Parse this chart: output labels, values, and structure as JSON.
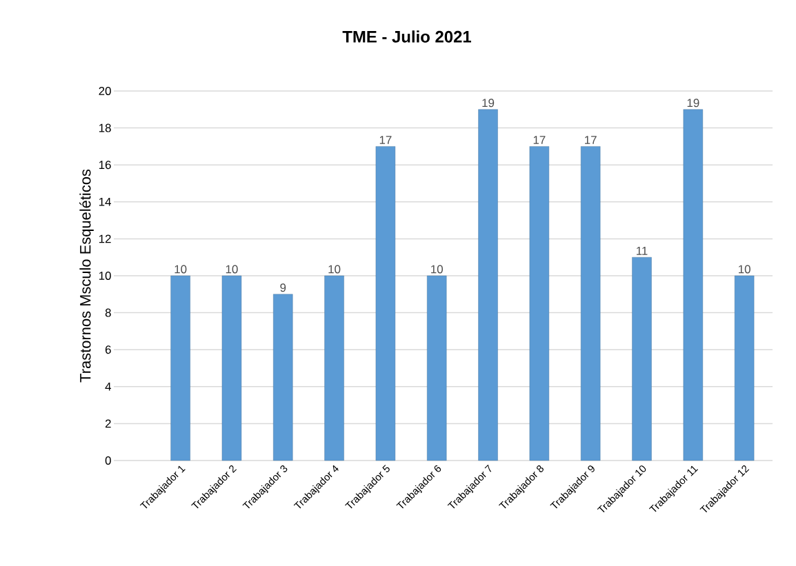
{
  "chart_data": {
    "type": "bar",
    "title": "TME - Julio 2021",
    "ylabel": "Trastornos Msculo Esqueléticos",
    "categories": [
      "Trabajador 1",
      "Trabajador 2",
      "Trabajador 3",
      "Trabajador 4",
      "Trabajador 5",
      "Trabajador 6",
      "Trabajador 7",
      "Trabajador 8",
      "Trabajador 9",
      "Trabajador 10",
      "Trabajador 11",
      "Trabajador 12"
    ],
    "values": [
      10,
      10,
      9,
      10,
      17,
      10,
      19,
      17,
      17,
      11,
      19,
      10
    ],
    "color": "#5b9bd5",
    "ylim": [
      0,
      20
    ],
    "yticks": [
      0,
      2,
      4,
      6,
      8,
      10,
      12,
      14,
      16,
      18,
      20
    ],
    "grid": "y",
    "data_labels": true
  }
}
